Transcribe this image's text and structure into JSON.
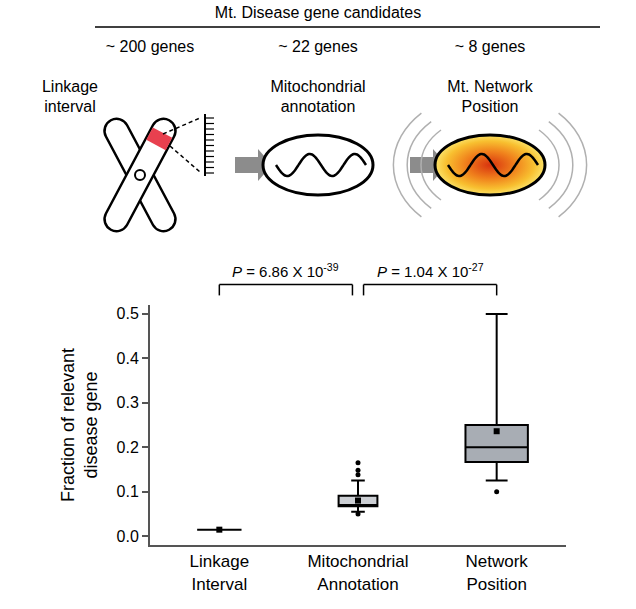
{
  "diagram": {
    "header": "Mt. Disease gene candidates",
    "stages": [
      {
        "count": "~ 200 genes",
        "label_lines": [
          "Linkage",
          "interval"
        ]
      },
      {
        "count": "~ 22 genes",
        "label_lines": [
          "Mitochondrial",
          "annotation"
        ]
      },
      {
        "count": "~ 8 genes",
        "label_lines": [
          "Mt. Network",
          "Position"
        ]
      }
    ]
  },
  "chart_data": {
    "type": "box",
    "categories": [
      "Linkage Interval",
      "Mitochondrial Annotation",
      "Network Position"
    ],
    "y_label": [
      "Fraction of relevant",
      "disease gene"
    ],
    "ylim": [
      -0.02,
      0.52
    ],
    "yticks": [
      {
        "value": 0,
        "label": "0.0"
      },
      0.1,
      0.2,
      0.3,
      0.4,
      0.5
    ],
    "colors": [
      "#d9d9d9",
      "#cbced3",
      "#a8adb4"
    ],
    "boxes": [
      {
        "q1": 0.0145,
        "median": 0.0145,
        "q3": 0.0145,
        "lowerfence": 0.0145,
        "upperfence": 0.0145,
        "mean": 0.0145,
        "outliers": []
      },
      {
        "q1": 0.067,
        "median": 0.07,
        "q3": 0.091,
        "lowerfence": 0.055,
        "upperfence": 0.125,
        "mean": 0.08,
        "outliers": [
          0.05,
          0.138,
          0.148,
          0.165
        ]
      },
      {
        "q1": 0.167,
        "median": 0.2,
        "q3": 0.25,
        "lowerfence": 0.125,
        "upperfence": 0.5,
        "mean": 0.236,
        "outliers": [
          0.1
        ]
      }
    ],
    "comparisons": [
      {
        "from": "Linkage Interval",
        "to": "Mitochondrial Annotation",
        "label": "P = 6.86 X 10",
        "exponent": "-39"
      },
      {
        "from": "Mitochondrial Annotation",
        "to": "Network Position",
        "label": "P = 1.04 X 10",
        "exponent": "-27"
      }
    ]
  }
}
